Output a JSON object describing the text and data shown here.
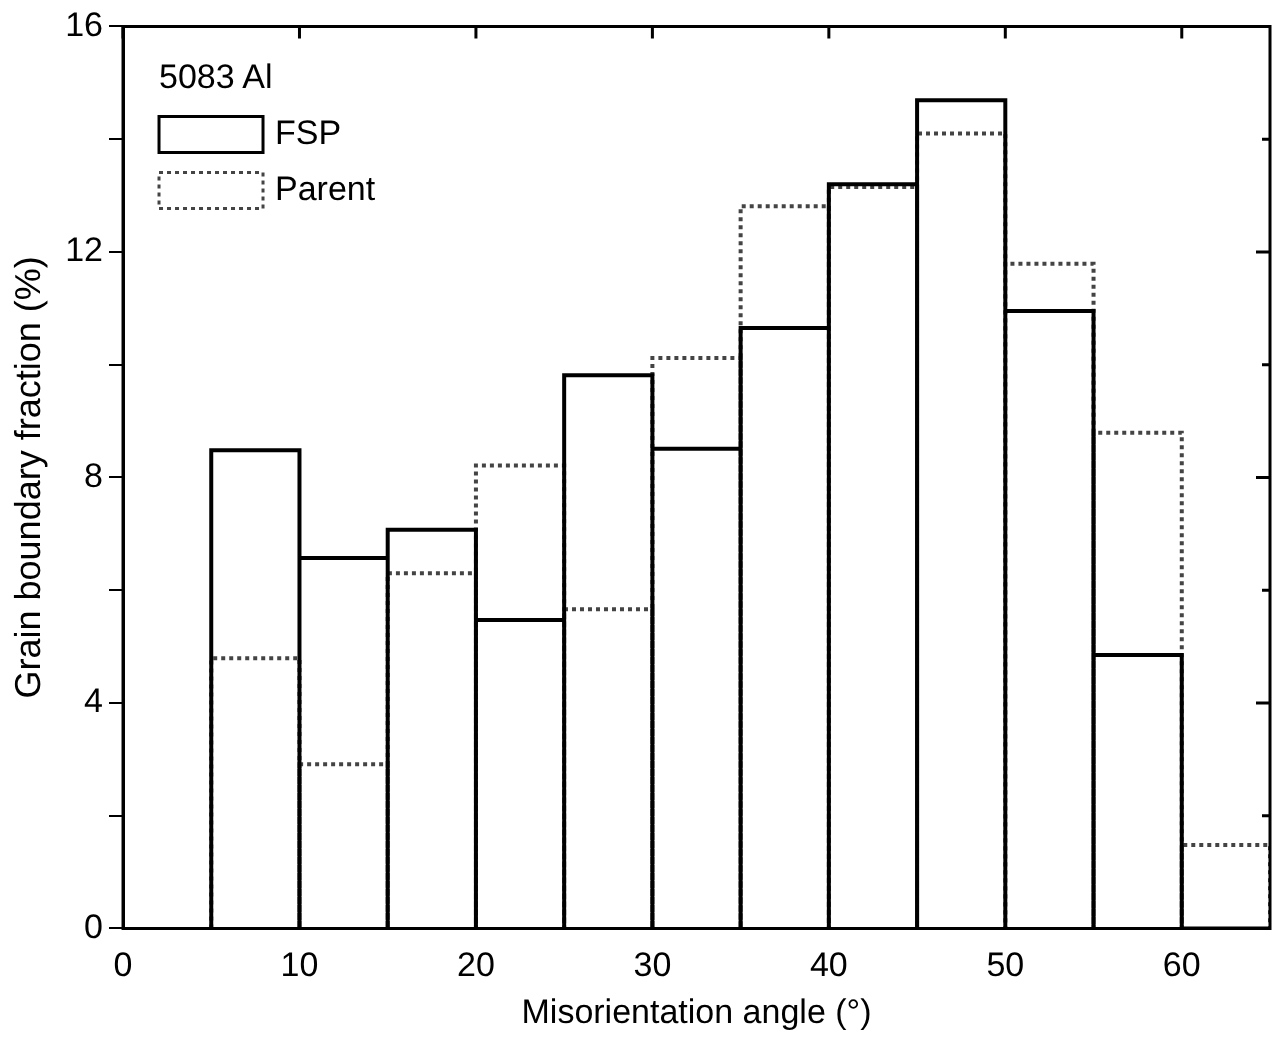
{
  "chart_data": {
    "type": "histogram",
    "xlabel": "Misorientation angle (°)",
    "ylabel": "Grain boundary fraction (%)",
    "legend_title": "5083 Al",
    "bins": [
      5,
      10,
      15,
      20,
      25,
      30,
      35,
      40,
      45,
      50,
      55,
      60,
      65
    ],
    "series": [
      {
        "name": "FSP",
        "color": "#000000",
        "line_style": "solid",
        "values": [
          8.48,
          6.57,
          7.07,
          5.47,
          9.81,
          8.51,
          10.65,
          13.2,
          14.69,
          10.95,
          4.85,
          0
        ]
      },
      {
        "name": "Parent",
        "color": "#444444",
        "line_style": "dotted",
        "values": [
          4.79,
          2.91,
          6.3,
          8.21,
          5.66,
          10.12,
          12.81,
          13.15,
          14.1,
          11.79,
          8.79,
          1.48
        ]
      }
    ],
    "xlim": [
      0,
      65
    ],
    "xticks": [
      0,
      10,
      20,
      30,
      40,
      50,
      60
    ],
    "ylim": [
      0,
      16
    ],
    "yticks": [
      0,
      {
        "value": 2,
        "label": null
      },
      4,
      {
        "value": 6,
        "label": null
      },
      8,
      {
        "value": 10,
        "label": null
      },
      12,
      {
        "value": 14,
        "label": null
      },
      16
    ],
    "grid": false,
    "legend": "top left"
  }
}
